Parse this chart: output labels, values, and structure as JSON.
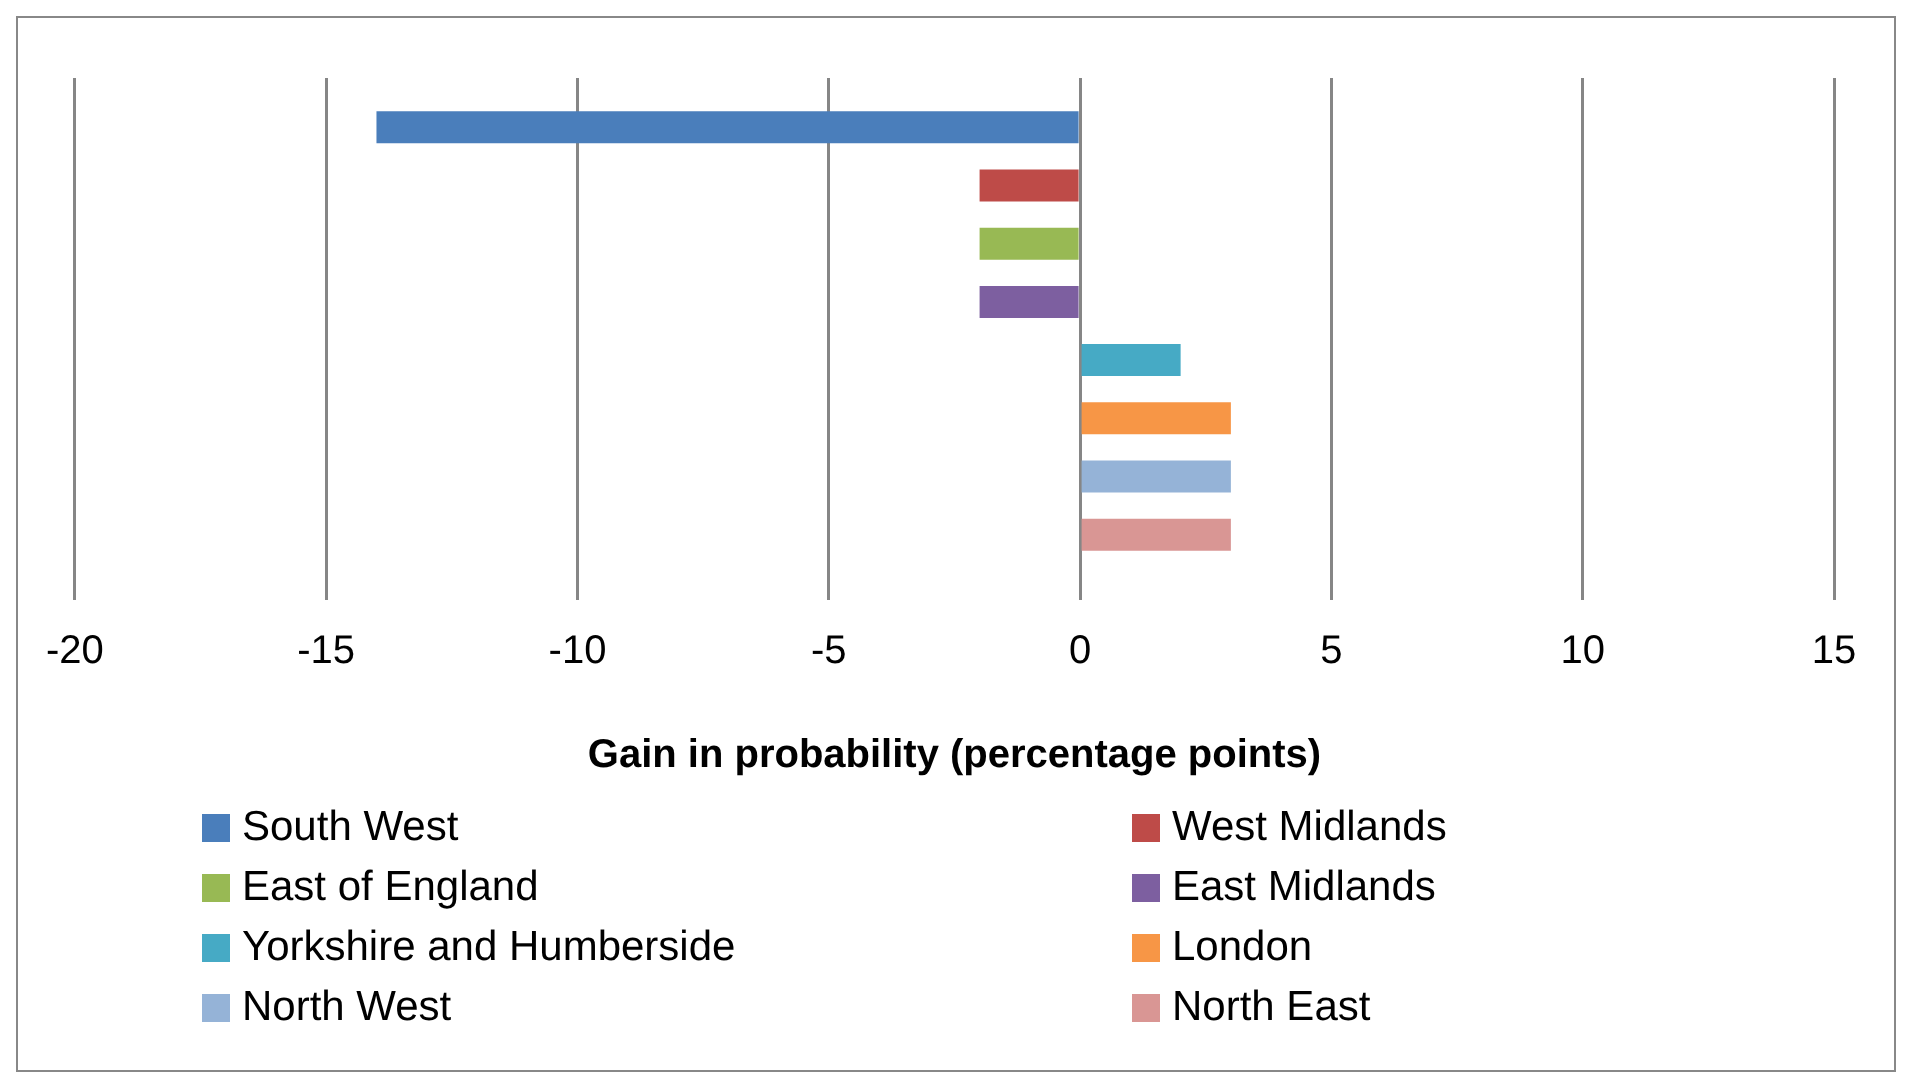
{
  "chart_data": {
    "type": "bar",
    "orientation": "horizontal",
    "categories": [
      null
    ],
    "xlabel": "Gain in probability (percentage points)",
    "xlim": [
      -20,
      15
    ],
    "xticks": [
      -20,
      -15,
      -10,
      -5,
      0,
      5,
      10,
      15
    ],
    "grid": "x",
    "legend": "bottom",
    "series": [
      {
        "name": "South West",
        "color": "#4a7ebb",
        "values": [
          -14
        ]
      },
      {
        "name": "West Midlands",
        "color": "#be4b48",
        "values": [
          -2
        ]
      },
      {
        "name": "East of England",
        "color": "#98b954",
        "values": [
          -2
        ]
      },
      {
        "name": "East Midlands",
        "color": "#7d5fa0",
        "values": [
          -2
        ]
      },
      {
        "name": "Yorkshire and Humberside",
        "color": "#46aac5",
        "values": [
          2
        ]
      },
      {
        "name": "London",
        "color": "#f79646",
        "values": [
          3
        ]
      },
      {
        "name": "North West",
        "color": "#95b3d7",
        "values": [
          3
        ]
      },
      {
        "name": "North East",
        "color": "#d99694",
        "values": [
          3
        ]
      }
    ]
  }
}
